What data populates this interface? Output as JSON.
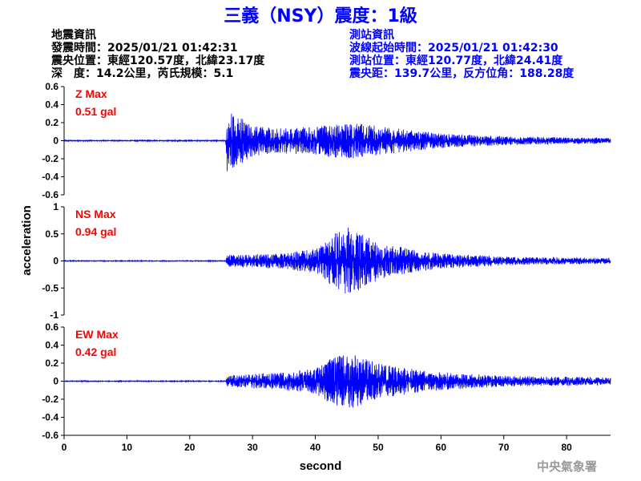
{
  "title": "三義（NSY）震度：1級",
  "quake_info": {
    "heading": "地震資訊",
    "time": "發震時間：2025/01/21 01:42:31",
    "epicenter": "震央位置：東經120.57度，北緯23.17度",
    "depth_magnitude": "深　度：14.2公里，芮氏規模：5.1"
  },
  "station_info": {
    "heading": "測站資訊",
    "onset": "波線起始時間：2025/01/21 01:42:30",
    "location": "測站位置：東經120.77度，北緯24.41度",
    "distance_azimuth": "震央距：139.7公里，反方位角：188.28度"
  },
  "credit": "中央氣象署",
  "colors": {
    "title": "#0000ff",
    "trace": "#0000ff",
    "max_label": "#ff0000",
    "info_right": "#0000ff",
    "credit": "#9a9a9a"
  },
  "chart_data": {
    "type": "line",
    "xlabel": "second",
    "ylabel": "acceleration",
    "xlim": [
      0,
      87
    ],
    "x_ticks": [
      "0",
      "10",
      "20",
      "30",
      "40",
      "50",
      "60",
      "70",
      "80"
    ],
    "wave_onset_s": 25.8,
    "panels": [
      {
        "name": "Z",
        "max_label": "Z Max",
        "max_value": "0.51 gal",
        "ylim": [
          -0.6,
          0.6
        ],
        "y_ticks": [
          "0.6",
          "0.4",
          "0.2",
          "0",
          "-0.2",
          "-0.4",
          "-0.6"
        ],
        "envelope": [
          [
            0,
            0.006
          ],
          [
            25.7,
            0.006
          ],
          [
            26,
            0.42
          ],
          [
            27,
            0.3
          ],
          [
            30,
            0.18
          ],
          [
            33,
            0.14
          ],
          [
            38,
            0.15
          ],
          [
            42,
            0.18
          ],
          [
            46,
            0.2
          ],
          [
            50,
            0.16
          ],
          [
            55,
            0.12
          ],
          [
            60,
            0.08
          ],
          [
            70,
            0.05
          ],
          [
            80,
            0.035
          ],
          [
            87,
            0.03
          ]
        ]
      },
      {
        "name": "NS",
        "max_label": "NS Max",
        "max_value": "0.94 gal",
        "ylim": [
          -1,
          1
        ],
        "y_ticks": [
          "1",
          "0.5",
          "0",
          "-0.5",
          "-1"
        ],
        "envelope": [
          [
            0,
            0.008
          ],
          [
            25.7,
            0.008
          ],
          [
            26,
            0.12
          ],
          [
            30,
            0.12
          ],
          [
            35,
            0.15
          ],
          [
            40,
            0.22
          ],
          [
            43,
            0.5
          ],
          [
            45,
            0.65
          ],
          [
            47,
            0.55
          ],
          [
            50,
            0.35
          ],
          [
            55,
            0.22
          ],
          [
            60,
            0.14
          ],
          [
            70,
            0.08
          ],
          [
            80,
            0.06
          ],
          [
            87,
            0.05
          ]
        ]
      },
      {
        "name": "EW",
        "max_label": "EW Max",
        "max_value": "0.42 gal",
        "ylim": [
          -0.6,
          0.6
        ],
        "y_ticks": [
          "0.6",
          "0.4",
          "0.2",
          "0",
          "-0.2",
          "-0.4",
          "-0.6"
        ],
        "envelope": [
          [
            0,
            0.005
          ],
          [
            25.7,
            0.005
          ],
          [
            26,
            0.06
          ],
          [
            30,
            0.08
          ],
          [
            35,
            0.1
          ],
          [
            40,
            0.14
          ],
          [
            43,
            0.28
          ],
          [
            46,
            0.3
          ],
          [
            50,
            0.2
          ],
          [
            55,
            0.14
          ],
          [
            60,
            0.1
          ],
          [
            70,
            0.06
          ],
          [
            80,
            0.05
          ],
          [
            87,
            0.04
          ]
        ]
      }
    ]
  }
}
